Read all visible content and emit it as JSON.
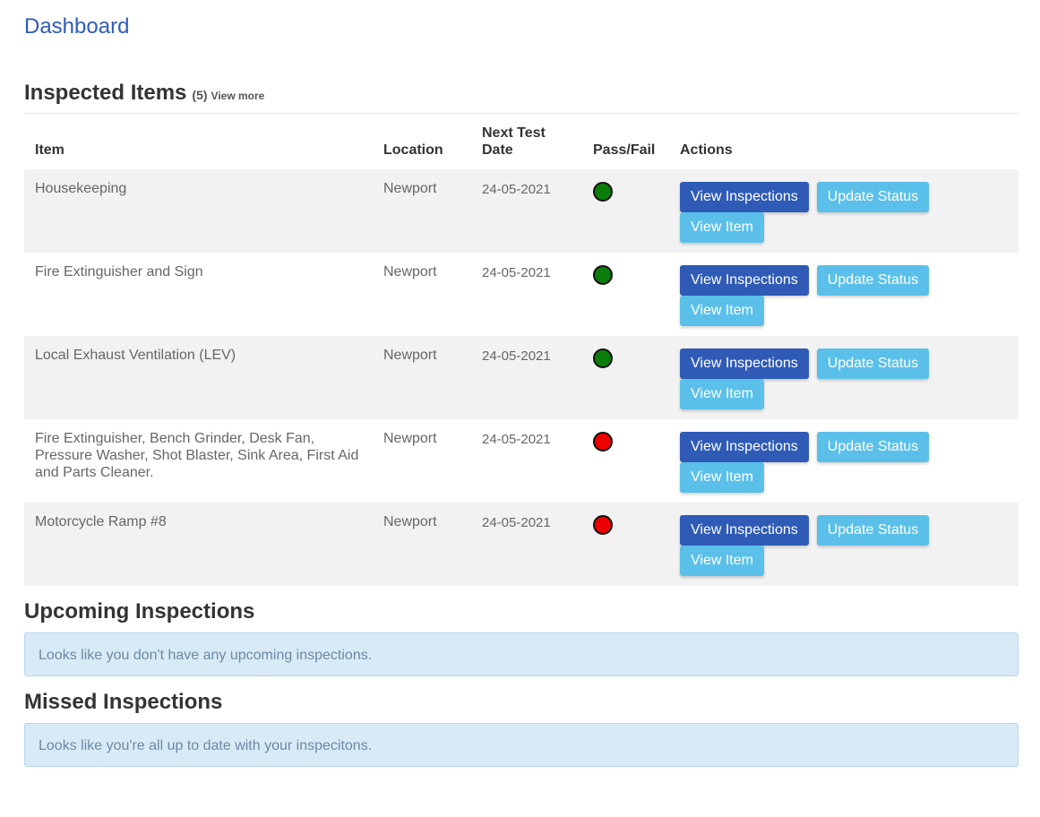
{
  "page": {
    "title": "Dashboard"
  },
  "inspected_items": {
    "heading": "Inspected Items",
    "count": "(5)",
    "view_more": "View more",
    "columns": {
      "item": "Item",
      "location": "Location",
      "next_test_date": "Next Test Date",
      "pass_fail": "Pass/Fail",
      "actions": "Actions"
    },
    "rows": [
      {
        "item": "Housekeeping",
        "location": "Newport",
        "date": "24-05-2021",
        "status": "pass"
      },
      {
        "item": "Fire Extinguisher and Sign",
        "location": "Newport",
        "date": "24-05-2021",
        "status": "pass"
      },
      {
        "item": "Local Exhaust Ventilation (LEV)",
        "location": "Newport",
        "date": "24-05-2021",
        "status": "pass"
      },
      {
        "item": "Fire Extinguisher, Bench Grinder, Desk Fan, Pressure Washer, Shot Blaster, Sink Area, First Aid and Parts Cleaner.",
        "location": "Newport",
        "date": "24-05-2021",
        "status": "fail"
      },
      {
        "item": "Motorcycle Ramp #8",
        "location": "Newport",
        "date": "24-05-2021",
        "status": "fail"
      }
    ],
    "action_labels": {
      "view_inspections": "View Inspections",
      "update_status": "Update Status",
      "view_item": "View Item"
    }
  },
  "upcoming": {
    "heading": "Upcoming Inspections",
    "message": "Looks like you don't have any upcoming inspections."
  },
  "missed": {
    "heading": "Missed Inspections",
    "message": "Looks like you're all up to date with your inspecitons."
  },
  "colors": {
    "primary": "#2f5bb7",
    "info": "#5bc0e9",
    "pass": "#0a7d0a",
    "fail": "#ee0000",
    "alert_bg": "#d9eaf7"
  }
}
